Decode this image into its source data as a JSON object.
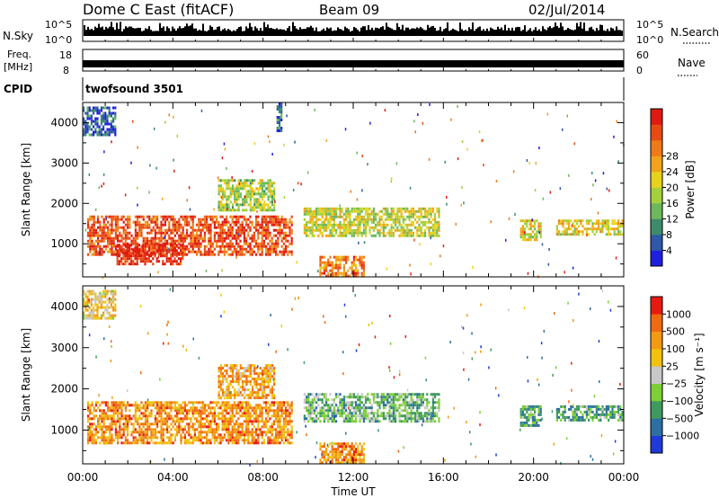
{
  "header": {
    "station": "Dome C East (fitACF)",
    "beam": "Beam 09",
    "date": "02/Jul/2014"
  },
  "strips": {
    "nsky": {
      "label": "N.Sky",
      "ytick_top": "10^5",
      "ytick_bottom": "10^0"
    },
    "nsearch": {
      "label": "N.Search",
      "ytick_top": "10^5",
      "ytick_bottom": "10^0"
    },
    "freq": {
      "label_line1": "Freq.",
      "label_line2": "[MHz]",
      "ytick_top": "18",
      "ytick_bottom": "8"
    },
    "nave": {
      "label": "Nave",
      "ytick_top": "60",
      "ytick_bottom": "0"
    },
    "cpid": {
      "label": "CPID",
      "program": "twofsound 3501"
    }
  },
  "x_axis": {
    "label": "Time UT",
    "ticks": [
      "00:00",
      "04:00",
      "08:00",
      "12:00",
      "16:00",
      "20:00",
      "00:00"
    ]
  },
  "chart_data": [
    {
      "type": "heatmap",
      "panel": "power",
      "ylabel": "Slant Range [km]",
      "yticks": [
        1000,
        2000,
        3000,
        4000
      ],
      "ylim": [
        180,
        4500
      ],
      "xlim_hours": [
        0,
        24
      ],
      "colorbar": {
        "label": "Power [dB]",
        "ticks": [
          "4",
          "8",
          "12",
          "16",
          "20",
          "24",
          "28"
        ],
        "colors": [
          "#1f1fe0",
          "#2f58a8",
          "#3c8c6c",
          "#6cb85a",
          "#a4d03c",
          "#e8d21c",
          "#f2a31a",
          "#f07a18",
          "#e84a14",
          "#e01a10"
        ]
      },
      "regions": [
        {
          "t": [
            0.2,
            9.3
          ],
          "r": [
            700,
            1700
          ],
          "level": 0.85
        },
        {
          "t": [
            1.5,
            4.5
          ],
          "r": [
            500,
            1000
          ],
          "level": 0.95
        },
        {
          "t": [
            6.0,
            8.5
          ],
          "r": [
            1800,
            2600
          ],
          "level": 0.45
        },
        {
          "t": [
            9.8,
            15.8
          ],
          "r": [
            1200,
            1900
          ],
          "level": 0.5
        },
        {
          "t": [
            10.5,
            12.5
          ],
          "r": [
            200,
            700
          ],
          "level": 0.75
        },
        {
          "t": [
            19.4,
            20.3
          ],
          "r": [
            1100,
            1600
          ],
          "level": 0.55
        },
        {
          "t": [
            21.0,
            24.0
          ],
          "r": [
            1200,
            1600
          ],
          "level": 0.55
        },
        {
          "t": [
            8.6,
            8.8
          ],
          "r": [
            3800,
            4500
          ],
          "level": 0.2
        },
        {
          "t": [
            0.0,
            1.5
          ],
          "r": [
            3700,
            4400
          ],
          "level": 0.15
        }
      ]
    },
    {
      "type": "heatmap",
      "panel": "velocity",
      "ylabel": "Slant Range [km]",
      "yticks": [
        1000,
        2000,
        3000,
        4000
      ],
      "ylim": [
        180,
        4500
      ],
      "xlim_hours": [
        0,
        24
      ],
      "colorbar": {
        "label": "Velocity [m s⁻¹]",
        "ticks": [
          "1000",
          "500",
          "100",
          "25",
          "−25",
          "−100",
          "−500",
          "−1000"
        ],
        "colors": [
          "#1f3ad8",
          "#2c6fa0",
          "#3e9a5e",
          "#7ccf34",
          "#c8c8c8",
          "#f2c20c",
          "#f29a12",
          "#f06a10",
          "#e81a10"
        ]
      },
      "regions": [
        {
          "t": [
            0.2,
            9.3
          ],
          "r": [
            700,
            1700
          ],
          "level": 0.75
        },
        {
          "t": [
            6.0,
            8.5
          ],
          "r": [
            1800,
            2600
          ],
          "level": 0.7
        },
        {
          "t": [
            9.8,
            15.8
          ],
          "r": [
            1200,
            1900
          ],
          "level": 0.35
        },
        {
          "t": [
            10.5,
            12.5
          ],
          "r": [
            200,
            700
          ],
          "level": 0.75
        },
        {
          "t": [
            19.4,
            20.3
          ],
          "r": [
            1100,
            1600
          ],
          "level": 0.3
        },
        {
          "t": [
            21.0,
            24.0
          ],
          "r": [
            1200,
            1600
          ],
          "level": 0.3
        },
        {
          "t": [
            0.0,
            1.5
          ],
          "r": [
            3700,
            4400
          ],
          "level": 0.6
        }
      ]
    }
  ]
}
